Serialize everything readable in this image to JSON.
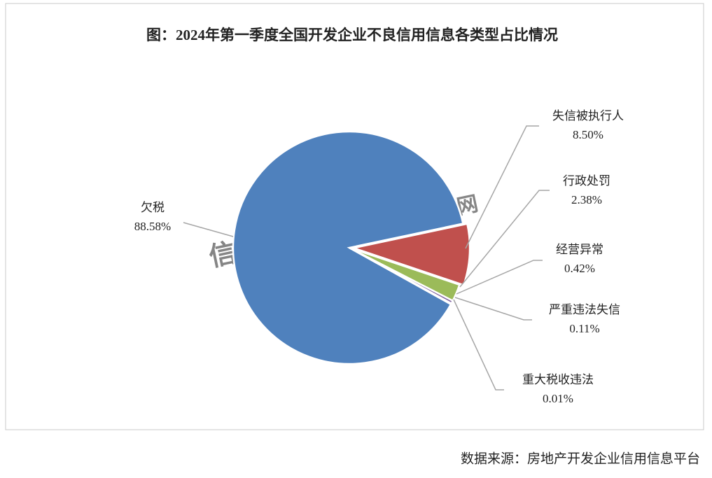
{
  "chart_data": {
    "type": "pie",
    "title": "图：2024年第一季度全国开发企业不良信用信息各类型占比情况",
    "categories": [
      "欠税",
      "失信被执行人",
      "行政处罚",
      "经营异常",
      "严重违法失信",
      "重大税收违法"
    ],
    "values": [
      88.58,
      8.5,
      2.38,
      0.42,
      0.11,
      0.01
    ],
    "value_labels": [
      "88.58%",
      "8.50%",
      "2.38%",
      "0.42%",
      "0.11%",
      "0.01%"
    ],
    "colors": [
      "#4f81bd",
      "#c0504d",
      "#9bbb59",
      "#8064a2",
      "#4bacc6",
      "#f79646"
    ],
    "watermarks": [
      "信用房地产",
      "中房网"
    ],
    "source": "数据来源：房地产开发企业信用信息平台"
  }
}
